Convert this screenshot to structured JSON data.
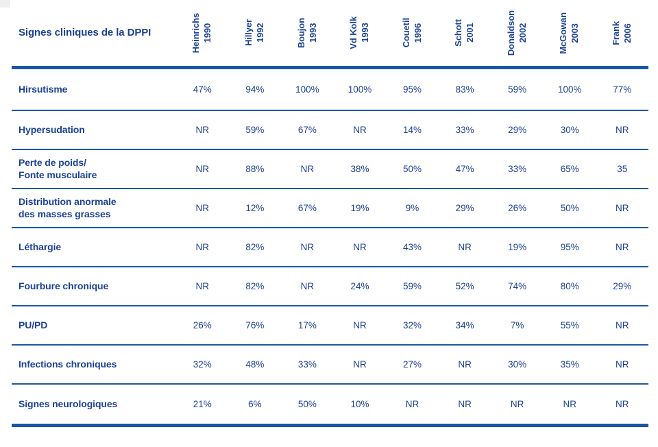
{
  "colors": {
    "text": "#1c4195",
    "rule": "#1a57a5",
    "background": "#ffffff",
    "na_value_text": "NR"
  },
  "chart_data": {
    "type": "table",
    "title": "Signes cliniques de la DPPI",
    "legend_position": "none",
    "grid": "horizontal-rules-only",
    "columns": [
      {
        "author": "Heinrichs",
        "year": "1990"
      },
      {
        "author": "Hillyer",
        "year": "1992"
      },
      {
        "author": "Boujon",
        "year": "1993"
      },
      {
        "author": "Vd Kolk",
        "year": "1993"
      },
      {
        "author": "Couetil",
        "year": "1996"
      },
      {
        "author": "Schott",
        "year": "2001"
      },
      {
        "author": "Donaldson",
        "year": "2002"
      },
      {
        "author": "McGowan",
        "year": "2003"
      },
      {
        "author": "Frank",
        "year": "2006"
      }
    ],
    "rows": [
      {
        "label": [
          "Hirsutisme"
        ],
        "values": [
          "47%",
          "94%",
          "100%",
          "100%",
          "95%",
          "83%",
          "59%",
          "100%",
          "77%"
        ]
      },
      {
        "label": [
          "Hypersudation"
        ],
        "values": [
          "NR",
          "59%",
          "67%",
          "NR",
          "14%",
          "33%",
          "29%",
          "30%",
          "NR"
        ]
      },
      {
        "label": [
          "Perte de poids/",
          "Fonte musculaire"
        ],
        "values": [
          "NR",
          "88%",
          "NR",
          "38%",
          "50%",
          "47%",
          "33%",
          "65%",
          "35"
        ]
      },
      {
        "label": [
          "Distribution anormale",
          "des masses grasses"
        ],
        "values": [
          "NR",
          "12%",
          "67%",
          "19%",
          "9%",
          "29%",
          "26%",
          "50%",
          "NR"
        ]
      },
      {
        "label": [
          "Léthargie"
        ],
        "values": [
          "NR",
          "82%",
          "NR",
          "NR",
          "43%",
          "NR",
          "19%",
          "95%",
          "NR"
        ]
      },
      {
        "label": [
          "Fourbure chronique"
        ],
        "values": [
          "NR",
          "82%",
          "NR",
          "24%",
          "59%",
          "52%",
          "74%",
          "80%",
          "29%"
        ]
      },
      {
        "label": [
          "PU/PD"
        ],
        "values": [
          "26%",
          "76%",
          "17%",
          "NR",
          "32%",
          "34%",
          "7%",
          "55%",
          "NR"
        ]
      },
      {
        "label": [
          "Infections chroniques"
        ],
        "values": [
          "32%",
          "48%",
          "33%",
          "NR",
          "27%",
          "NR",
          "30%",
          "35%",
          "NR"
        ]
      },
      {
        "label": [
          "Signes neurologiques"
        ],
        "values": [
          "21%",
          "6%",
          "50%",
          "10%",
          "NR",
          "NR",
          "NR",
          "NR",
          "NR"
        ]
      }
    ]
  }
}
